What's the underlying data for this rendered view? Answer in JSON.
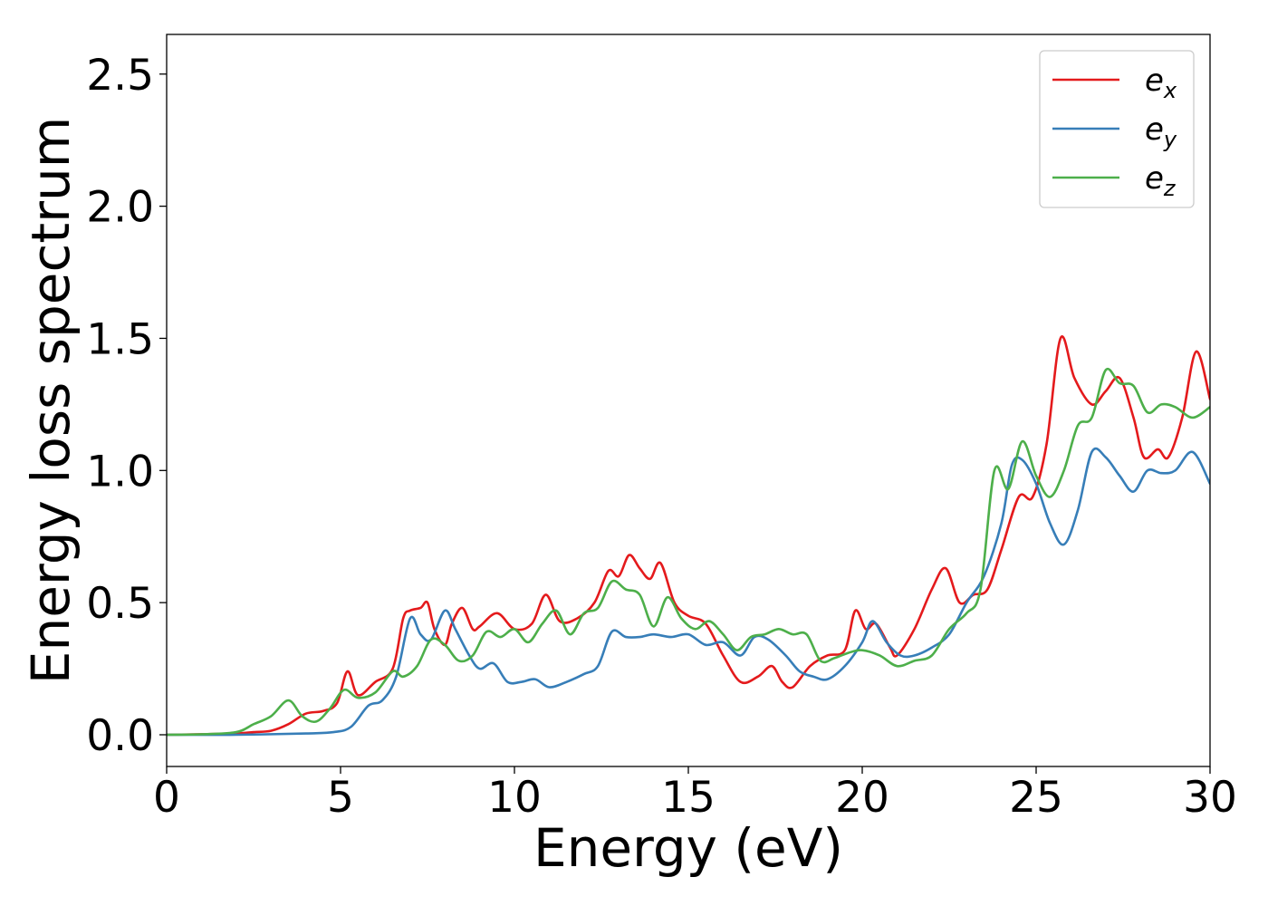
{
  "chart_data": {
    "type": "line",
    "title": "",
    "xlabel": "Energy (eV)",
    "ylabel": "Energy loss spectrum",
    "xlim": [
      0,
      30
    ],
    "ylim": [
      -0.12,
      2.65
    ],
    "xticks": [
      0,
      5,
      10,
      15,
      20,
      25,
      30
    ],
    "xtick_labels": [
      "0",
      "5",
      "10",
      "15",
      "20",
      "25",
      "30"
    ],
    "yticks": [
      0.0,
      0.5,
      1.0,
      1.5,
      2.0,
      2.5
    ],
    "ytick_labels": [
      "0.0",
      "0.5",
      "1.0",
      "1.5",
      "2.0",
      "2.5"
    ],
    "grid": false,
    "legend": {
      "placement": "top-right",
      "entries": [
        {
          "base": "e",
          "sub": "x"
        },
        {
          "base": "e",
          "sub": "y"
        },
        {
          "base": "e",
          "sub": "z"
        }
      ]
    },
    "series": [
      {
        "name": "e_x",
        "color": "#e41a1c",
        "x": [
          0,
          1,
          2,
          2.5,
          3,
          3.5,
          4,
          4.5,
          4.9,
          5.2,
          5.5,
          6,
          6.5,
          6.8,
          7,
          7.3,
          7.5,
          7.7,
          8,
          8.2,
          8.5,
          8.8,
          9,
          9.5,
          10,
          10.5,
          10.9,
          11.3,
          11.8,
          12.3,
          12.7,
          13,
          13.3,
          13.6,
          13.9,
          14.2,
          14.6,
          15,
          15.5,
          16,
          16.5,
          17,
          17.4,
          17.7,
          18,
          18.5,
          19,
          19.5,
          19.8,
          20.1,
          20.4,
          20.8,
          21,
          21.5,
          22,
          22.4,
          22.8,
          23.2,
          23.6,
          24,
          24.5,
          24.9,
          25.3,
          25.7,
          26.1,
          26.6,
          27,
          27.4,
          27.8,
          28.1,
          28.5,
          28.8,
          29.2,
          29.6,
          30
        ],
        "y": [
          0,
          0.002,
          0.005,
          0.01,
          0.015,
          0.04,
          0.08,
          0.09,
          0.12,
          0.24,
          0.15,
          0.2,
          0.25,
          0.44,
          0.47,
          0.48,
          0.5,
          0.4,
          0.34,
          0.42,
          0.48,
          0.4,
          0.41,
          0.46,
          0.4,
          0.42,
          0.53,
          0.43,
          0.44,
          0.5,
          0.62,
          0.6,
          0.68,
          0.63,
          0.59,
          0.65,
          0.5,
          0.45,
          0.42,
          0.3,
          0.2,
          0.22,
          0.26,
          0.2,
          0.18,
          0.26,
          0.3,
          0.32,
          0.47,
          0.4,
          0.42,
          0.33,
          0.3,
          0.4,
          0.55,
          0.63,
          0.5,
          0.53,
          0.55,
          0.7,
          0.9,
          0.9,
          1.1,
          1.5,
          1.35,
          1.25,
          1.3,
          1.35,
          1.2,
          1.05,
          1.08,
          1.05,
          1.2,
          1.45,
          1.27
        ]
      },
      {
        "name": "e_y",
        "color": "#377eb8",
        "x": [
          0,
          2,
          4,
          4.8,
          5.3,
          5.8,
          6.2,
          6.6,
          7,
          7.3,
          7.6,
          8,
          8.3,
          8.7,
          9,
          9.4,
          9.8,
          10.2,
          10.6,
          11,
          11.5,
          12,
          12.4,
          12.8,
          13.2,
          13.6,
          14,
          14.5,
          15,
          15.5,
          16,
          16.5,
          16.9,
          17.3,
          17.8,
          18.2,
          18.6,
          19,
          19.5,
          20,
          20.3,
          20.7,
          21.1,
          21.5,
          22,
          22.5,
          23,
          23.5,
          24,
          24.3,
          24.6,
          25,
          25.4,
          25.8,
          26.2,
          26.6,
          27,
          27.4,
          27.8,
          28.2,
          28.6,
          29,
          29.5,
          30
        ],
        "y": [
          0,
          0,
          0.005,
          0.01,
          0.03,
          0.11,
          0.13,
          0.22,
          0.44,
          0.38,
          0.36,
          0.47,
          0.4,
          0.3,
          0.25,
          0.27,
          0.2,
          0.2,
          0.21,
          0.18,
          0.2,
          0.23,
          0.26,
          0.39,
          0.37,
          0.37,
          0.38,
          0.37,
          0.38,
          0.34,
          0.35,
          0.3,
          0.37,
          0.36,
          0.3,
          0.24,
          0.22,
          0.21,
          0.26,
          0.35,
          0.43,
          0.35,
          0.3,
          0.3,
          0.33,
          0.38,
          0.5,
          0.6,
          0.8,
          1.02,
          1.04,
          0.95,
          0.8,
          0.72,
          0.85,
          1.07,
          1.05,
          0.98,
          0.92,
          1.0,
          0.99,
          1.0,
          1.07,
          0.95
        ]
      },
      {
        "name": "e_z",
        "color": "#4daf4a",
        "x": [
          0,
          1,
          2,
          2.5,
          3,
          3.5,
          3.9,
          4.3,
          4.7,
          5.1,
          5.5,
          6,
          6.5,
          6.8,
          7.2,
          7.6,
          8,
          8.4,
          8.8,
          9.2,
          9.6,
          10,
          10.4,
          10.8,
          11.2,
          11.6,
          12,
          12.4,
          12.8,
          13.2,
          13.6,
          14,
          14.4,
          14.8,
          15.2,
          15.6,
          16,
          16.4,
          16.8,
          17.2,
          17.6,
          18,
          18.4,
          18.8,
          19.2,
          19.6,
          20,
          20.5,
          21,
          21.5,
          22,
          22.5,
          23,
          23.4,
          23.8,
          24.2,
          24.6,
          25,
          25.4,
          25.8,
          26.2,
          26.6,
          27,
          27.4,
          27.8,
          28.2,
          28.6,
          29,
          29.5,
          30
        ],
        "y": [
          0,
          0.002,
          0.01,
          0.04,
          0.07,
          0.13,
          0.07,
          0.05,
          0.1,
          0.17,
          0.14,
          0.16,
          0.24,
          0.22,
          0.26,
          0.36,
          0.34,
          0.28,
          0.3,
          0.39,
          0.37,
          0.4,
          0.35,
          0.42,
          0.47,
          0.38,
          0.46,
          0.48,
          0.58,
          0.55,
          0.53,
          0.41,
          0.52,
          0.44,
          0.4,
          0.43,
          0.38,
          0.32,
          0.37,
          0.38,
          0.4,
          0.38,
          0.38,
          0.28,
          0.29,
          0.31,
          0.32,
          0.3,
          0.26,
          0.28,
          0.3,
          0.4,
          0.46,
          0.55,
          1.0,
          0.93,
          1.11,
          0.98,
          0.9,
          1.0,
          1.17,
          1.2,
          1.38,
          1.33,
          1.32,
          1.22,
          1.25,
          1.24,
          1.2,
          1.24
        ]
      }
    ]
  }
}
